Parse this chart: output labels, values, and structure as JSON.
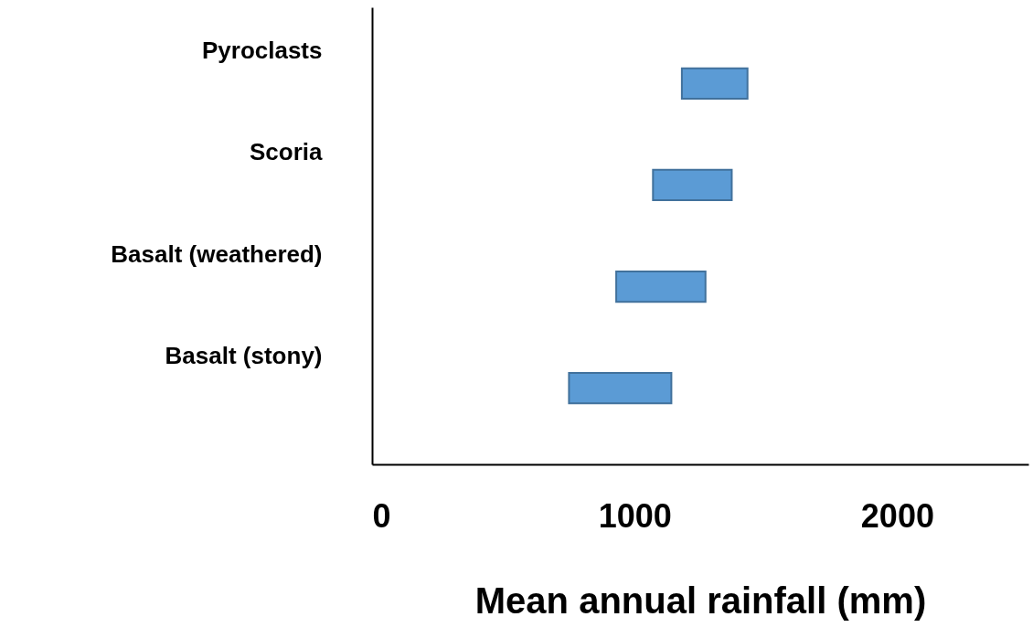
{
  "chart_data": {
    "type": "bar",
    "orientation": "horizontal",
    "xlabel": "Mean annual rainfall (mm)",
    "categories": [
      "Pyroclasts",
      "Scoria",
      "Basalt (weathered)",
      "Basalt (stony)"
    ],
    "base": [
      1180,
      1070,
      930,
      750
    ],
    "values": [
      250,
      300,
      340,
      390
    ],
    "color": "#5b9bd5",
    "xlim": [
      0,
      2500
    ],
    "xticks": [
      0,
      1000,
      2000
    ],
    "grid": false
  }
}
